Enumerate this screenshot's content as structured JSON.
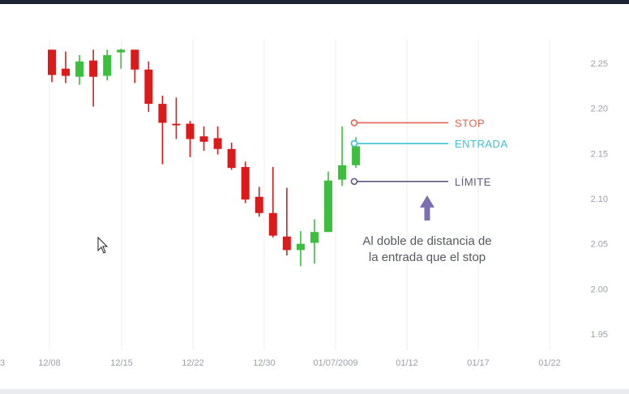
{
  "chart_data": {
    "type": "candlestick",
    "x_tick_labels": [
      "12/08",
      "12/15",
      "12/22",
      "12/30",
      "01/07/2009",
      "01/12",
      "01/17",
      "01/22"
    ],
    "y_ticks": [
      1.95,
      2.0,
      2.05,
      2.1,
      2.15,
      2.2,
      2.25
    ],
    "y_tick_labels": [
      "1.95",
      "2.00",
      "2.05",
      "2.10",
      "2.15",
      "2.20",
      "2.25"
    ],
    "ylim": [
      1.92,
      2.28
    ],
    "grid": "vertical",
    "colors": {
      "up": "#3cbf3c",
      "down": "#dd1a1a",
      "stop": "#e0644f",
      "entry": "#3fc0d4",
      "limit": "#5e5a80",
      "arrow": "#7b6fb0",
      "grid": "#ececec",
      "axis_text": "#9aa0a6"
    },
    "candles": [
      {
        "day": 0,
        "o": 2.265,
        "h": 2.265,
        "l": 2.229,
        "c": 2.237
      },
      {
        "day": 1,
        "o": 2.244,
        "h": 2.263,
        "l": 2.228,
        "c": 2.236
      },
      {
        "day": 2,
        "o": 2.235,
        "h": 2.259,
        "l": 2.226,
        "c": 2.252
      },
      {
        "day": 3,
        "o": 2.253,
        "h": 2.265,
        "l": 2.202,
        "c": 2.235
      },
      {
        "day": 4,
        "o": 2.236,
        "h": 2.265,
        "l": 2.231,
        "c": 2.259
      },
      {
        "day": 5,
        "o": 2.262,
        "h": 2.266,
        "l": 2.244,
        "c": 2.265
      },
      {
        "day": 6,
        "o": 2.265,
        "h": 2.265,
        "l": 2.228,
        "c": 2.243
      },
      {
        "day": 7,
        "o": 2.243,
        "h": 2.252,
        "l": 2.196,
        "c": 2.205
      },
      {
        "day": 8,
        "o": 2.205,
        "h": 2.214,
        "l": 2.138,
        "c": 2.184
      },
      {
        "day": 9,
        "o": 2.183,
        "h": 2.212,
        "l": 2.166,
        "c": 2.182
      },
      {
        "day": 10,
        "o": 2.183,
        "h": 2.186,
        "l": 2.146,
        "c": 2.166
      },
      {
        "day": 11,
        "o": 2.169,
        "h": 2.18,
        "l": 2.153,
        "c": 2.163
      },
      {
        "day": 12,
        "o": 2.167,
        "h": 2.18,
        "l": 2.149,
        "c": 2.155
      },
      {
        "day": 13,
        "o": 2.155,
        "h": 2.162,
        "l": 2.132,
        "c": 2.134
      },
      {
        "day": 14,
        "o": 2.135,
        "h": 2.141,
        "l": 2.095,
        "c": 2.099
      },
      {
        "day": 15,
        "o": 2.102,
        "h": 2.113,
        "l": 2.08,
        "c": 2.084
      },
      {
        "day": 16,
        "o": 2.084,
        "h": 2.135,
        "l": 2.057,
        "c": 2.059
      },
      {
        "day": 17,
        "o": 2.058,
        "h": 2.112,
        "l": 2.037,
        "c": 2.043
      },
      {
        "day": 18,
        "o": 2.043,
        "h": 2.064,
        "l": 2.025,
        "c": 2.05
      },
      {
        "day": 19,
        "o": 2.051,
        "h": 2.077,
        "l": 2.028,
        "c": 2.063
      },
      {
        "day": 20,
        "o": 2.063,
        "h": 2.13,
        "l": 2.063,
        "c": 2.12
      },
      {
        "day": 21,
        "o": 2.121,
        "h": 2.18,
        "l": 2.114,
        "c": 2.137
      },
      {
        "day": 22,
        "o": 2.137,
        "h": 2.168,
        "l": 2.134,
        "c": 2.158
      }
    ],
    "levels": [
      {
        "name": "stop",
        "label": "STOP",
        "value": 2.184
      },
      {
        "name": "entry",
        "label": "ENTRADA",
        "value": 2.161
      },
      {
        "name": "limit",
        "label": "LÍMITE",
        "value": 2.119
      }
    ],
    "annotation": {
      "line1": "Al doble de distancia de",
      "line2": "la entrada que el stop"
    }
  }
}
